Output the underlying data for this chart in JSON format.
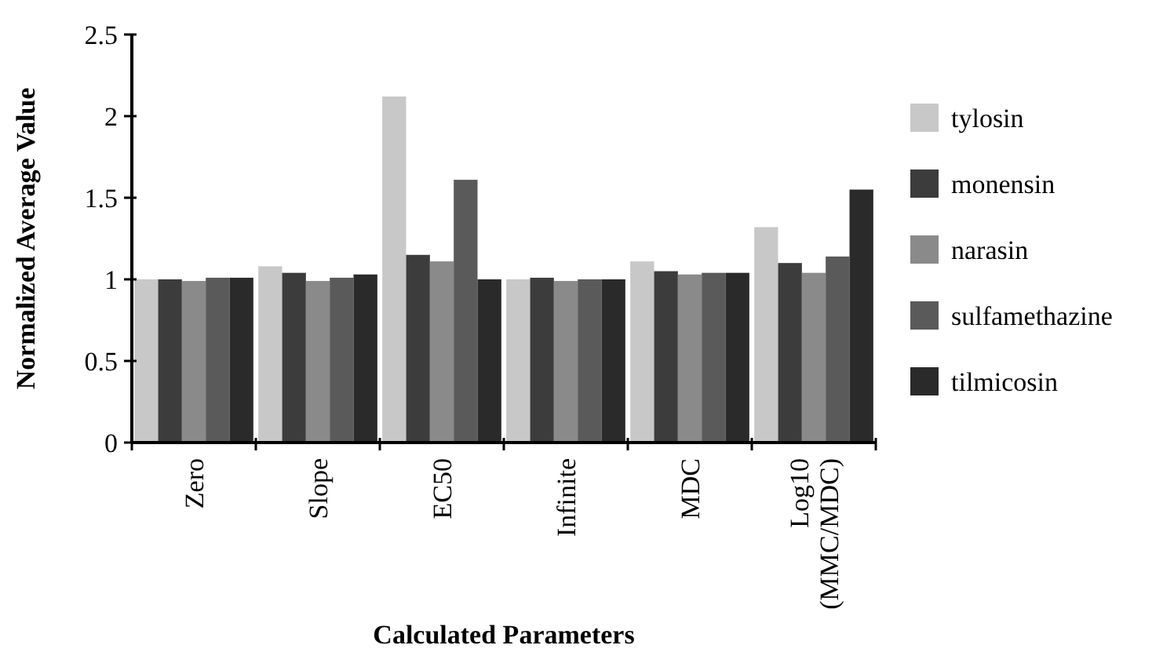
{
  "chart_data": {
    "type": "bar",
    "xlabel": "Calculated Parameters",
    "ylabel": "Normalized Average Value",
    "categories": [
      "Zero",
      "Slope",
      "EC50",
      "Infinite",
      "MDC",
      "Log10 (MMC/MDC)"
    ],
    "series": [
      {
        "name": "tylosin",
        "color": "#c8c8c8",
        "values": [
          1.0,
          1.08,
          2.12,
          1.0,
          1.11,
          1.32
        ]
      },
      {
        "name": "monensin",
        "color": "#3c3c3c",
        "values": [
          1.0,
          1.04,
          1.15,
          1.01,
          1.05,
          1.1
        ]
      },
      {
        "name": "narasin",
        "color": "#8a8a8a",
        "values": [
          0.99,
          0.99,
          1.11,
          0.99,
          1.03,
          1.04
        ]
      },
      {
        "name": "sulfamethazine",
        "color": "#5a5a5a",
        "values": [
          1.01,
          1.01,
          1.61,
          1.0,
          1.04,
          1.14
        ]
      },
      {
        "name": "tilmicosin",
        "color": "#2a2a2a",
        "values": [
          1.01,
          1.03,
          1.0,
          1.0,
          1.04,
          1.55
        ]
      }
    ],
    "ylim": [
      0,
      2.5
    ],
    "yticks": [
      0,
      0.5,
      1,
      1.5,
      2,
      2.5
    ],
    "grid": false,
    "legend": "right"
  }
}
